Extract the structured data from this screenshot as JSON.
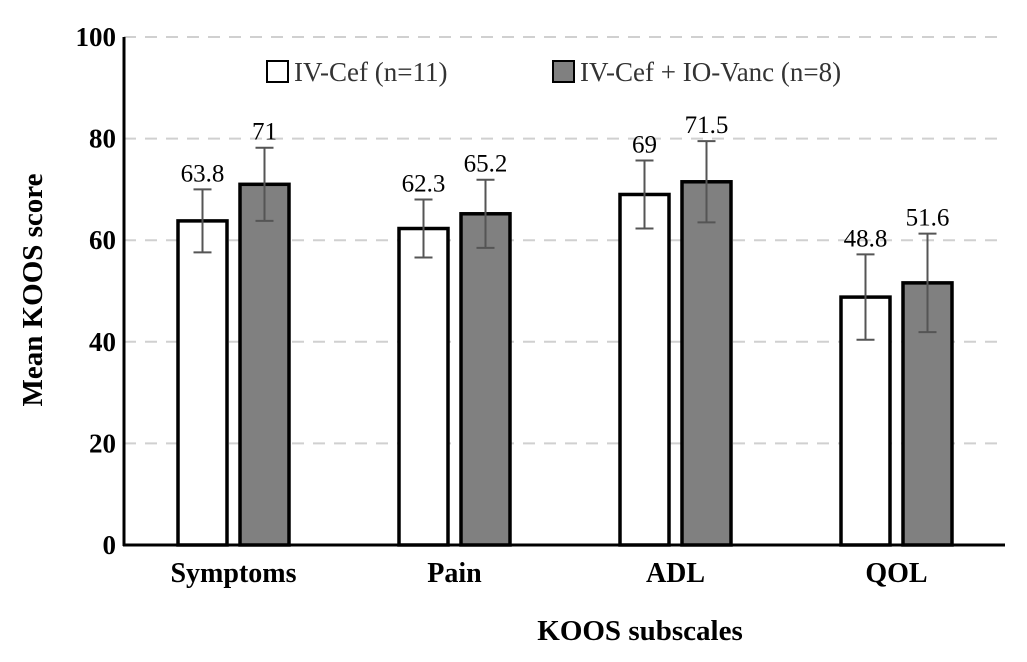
{
  "chart_data": {
    "type": "bar",
    "title": "",
    "xlabel": "KOOS subscales",
    "ylabel": "Mean KOOS score",
    "ylim": [
      0,
      100
    ],
    "yticks": [
      "0",
      "20",
      "40",
      "60",
      "80",
      "100"
    ],
    "grid": "horizontal dashed",
    "legend_position": "top",
    "categories": [
      "Symptoms",
      "Pain",
      "ADL",
      "QOL"
    ],
    "series": [
      {
        "name": "IV-Cef (n=11)",
        "color": "#ffffff",
        "values": [
          63.8,
          62.3,
          69,
          48.8
        ],
        "labels": [
          "63.8",
          "62.3",
          "69",
          "48.8"
        ],
        "error": [
          6.2,
          5.7,
          6.7,
          8.4
        ]
      },
      {
        "name": "IV-Cef + IO-Vanc (n=8)",
        "color": "#808080",
        "values": [
          71,
          65.2,
          71.5,
          51.6
        ],
        "labels": [
          "71",
          "65.2",
          "71.5",
          "51.6"
        ],
        "error": [
          7.2,
          6.7,
          8.0,
          9.7
        ]
      }
    ]
  }
}
